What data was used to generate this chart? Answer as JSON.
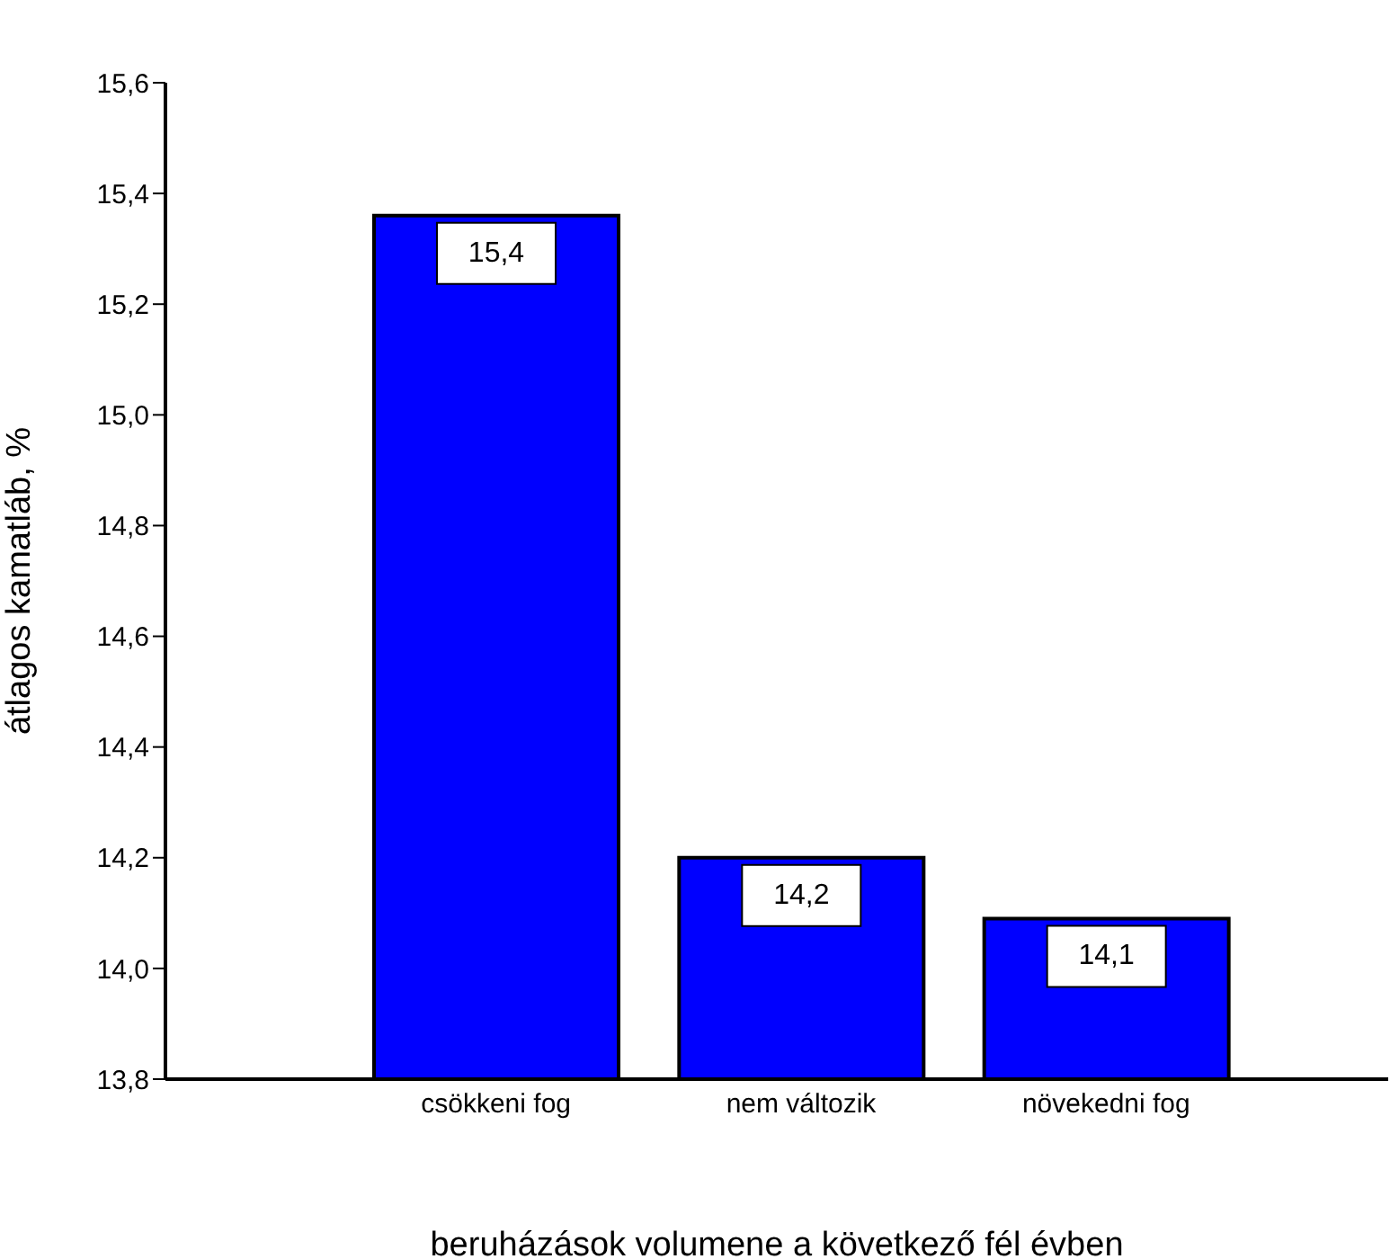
{
  "chart_data": {
    "type": "bar",
    "xlabel": "beruházások volumene a következő fél évben",
    "ylabel": "átlagos kamatláb, %",
    "categories": [
      "csökkeni fog",
      "nem változik",
      "növekedni fog"
    ],
    "values": [
      15.36,
      14.2,
      14.09
    ],
    "value_labels": [
      "15,4",
      "14,2",
      "14,1"
    ],
    "color": "#0000ff",
    "ylim": [
      13.8,
      15.6
    ],
    "yticks": [
      {
        "value": 13.8,
        "label": "13,8"
      },
      {
        "value": 14.0,
        "label": "14,0"
      },
      {
        "value": 14.2,
        "label": "14,2"
      },
      {
        "value": 14.4,
        "label": "14,4"
      },
      {
        "value": 14.6,
        "label": "14,6"
      },
      {
        "value": 14.8,
        "label": "14,8"
      },
      {
        "value": 15.0,
        "label": "15,0"
      },
      {
        "value": 15.2,
        "label": "15,2"
      },
      {
        "value": 15.4,
        "label": "15,4"
      },
      {
        "value": 15.6,
        "label": "15,6"
      }
    ],
    "grid": false,
    "legend": false
  }
}
